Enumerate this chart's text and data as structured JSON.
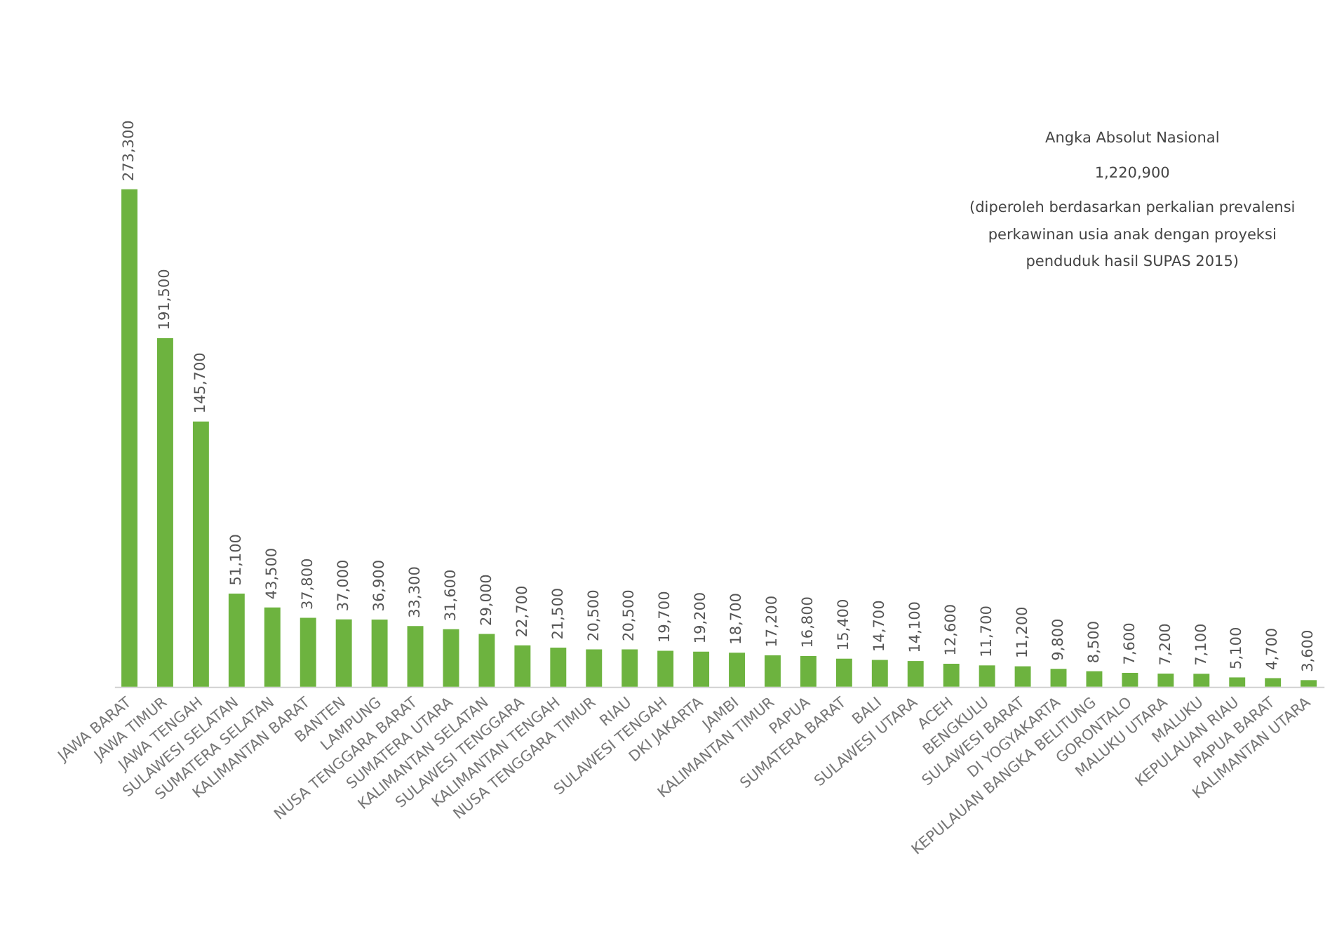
{
  "chart_data": {
    "type": "bar",
    "categories": [
      "JAWA BARAT",
      "JAWA TIMUR",
      "JAWA TENGAH",
      "SULAWESI SELATAN",
      "SUMATERA SELATAN",
      "KALIMANTAN BARAT",
      "BANTEN",
      "LAMPUNG",
      "NUSA TENGGARA BARAT",
      "SUMATERA UTARA",
      "KALIMANTAN SELATAN",
      "SULAWESI TENGGARA",
      "KALIMANTAN TENGAH",
      "NUSA TENGGARA TIMUR",
      "RIAU",
      "SULAWESI TENGAH",
      "DKI JAKARTA",
      "JAMBI",
      "KALIMANTAN TIMUR",
      "PAPUA",
      "SUMATERA BARAT",
      "BALI",
      "SULAWESI UTARA",
      "ACEH",
      "BENGKULU",
      "SULAWESI BARAT",
      "DI YOGYAKARTA",
      "KEPULAUAN BANGKA BELITUNG",
      "GORONTALO",
      "MALUKU UTARA",
      "MALUKU",
      "KEPULAUAN RIAU",
      "PAPUA BARAT",
      "KALIMANTAN UTARA"
    ],
    "values": [
      273300,
      191500,
      145700,
      51100,
      43500,
      37800,
      37000,
      36900,
      33300,
      31600,
      29000,
      22700,
      21500,
      20500,
      20500,
      19700,
      19200,
      18700,
      17200,
      16800,
      15400,
      14700,
      14100,
      12600,
      11700,
      11200,
      9800,
      8500,
      7600,
      7200,
      7100,
      5100,
      4700,
      3600
    ],
    "color": "#6db33f",
    "value_labels": [
      "273,300",
      "191,500",
      "145,700",
      "51,100",
      "43,500",
      "37,800",
      "37,000",
      "36,900",
      "33,300",
      "31,600",
      "29,000",
      "22,700",
      "21,500",
      "20,500",
      "20,500",
      "19,700",
      "19,200",
      "18,700",
      "17,200",
      "16,800",
      "15,400",
      "14,700",
      "14,100",
      "12,600",
      "11,700",
      "11,200",
      "9,800",
      "8,500",
      "7,600",
      "7,200",
      "7,100",
      "5,100",
      "4,700",
      "3,600"
    ],
    "annotations": [
      "Angka Absolut Nasional",
      "1,220,900",
      "(diperoleh berdasarkan perkalian prevalensi",
      "perkawinan usia anak dengan proyeksi",
      "penduduk hasil SUPAS 2015)"
    ]
  }
}
